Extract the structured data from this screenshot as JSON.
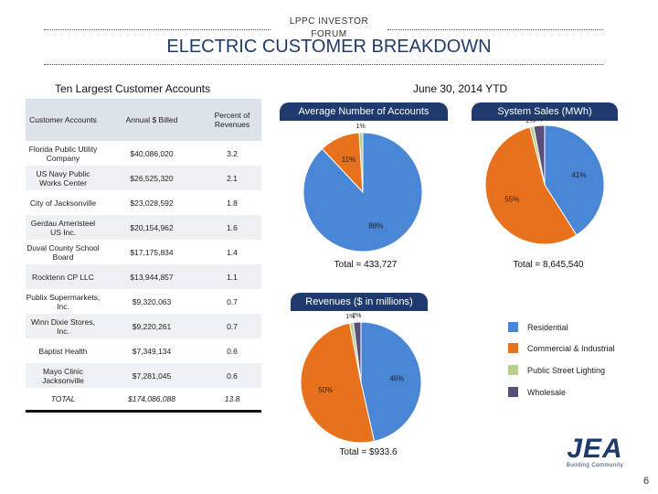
{
  "header": {
    "forum_label": "LPPC INVESTOR FORUM",
    "title": "ELECTRIC CUSTOMER BREAKDOWN"
  },
  "left_section_title": "Ten Largest Customer Accounts",
  "right_section_title": "June 30, 2014 YTD",
  "accounts_table": {
    "headers": [
      "Customer Accounts",
      "Annual $ Billed",
      "Percent of Revenues"
    ],
    "rows": [
      [
        "Florida Public Utility Company",
        "$40,086,020",
        "3.2"
      ],
      [
        "US Navy Public Works Center",
        "$26,525,320",
        "2.1"
      ],
      [
        "City of Jacksonville",
        "$23,028,592",
        "1.8"
      ],
      [
        "Gerdau Ameristeel US Inc.",
        "$20,154,962",
        "1.6"
      ],
      [
        "Duval County School Board",
        "$17,175,834",
        "1.4"
      ],
      [
        "Rocktenn CP LLC",
        "$13,944,857",
        "1.1"
      ],
      [
        "Publix Supermarkets, Inc.",
        "$9,320,063",
        "0.7"
      ],
      [
        "Winn Dixie Stores, Inc.",
        "$9,220,261",
        "0.7"
      ],
      [
        "Baptist Health",
        "$7,349,134",
        "0.6"
      ],
      [
        "Mayo Clinic Jacksonville",
        "$7,281,045",
        "0.6"
      ]
    ],
    "total": [
      "TOTAL",
      "$174,086,088",
      "13.8"
    ]
  },
  "colors": {
    "residential": "#4a86d6",
    "commercial": "#e8711c",
    "street": "#b8cf8c",
    "wholesale": "#5a4f7c",
    "navy": "#1f3b6e"
  },
  "chart_data": [
    {
      "type": "pie",
      "title": "Average Number of Accounts",
      "total_label": "Total = 433,727",
      "categories": [
        "Residential",
        "Commercial & Industrial",
        "Public Street Lighting",
        "Wholesale"
      ],
      "values": [
        88,
        11,
        1,
        0
      ],
      "data_labels": [
        "88%",
        "11%",
        "1%",
        ""
      ]
    },
    {
      "type": "pie",
      "title": "System Sales (MWh)",
      "total_label": "Total = 8,645,540",
      "categories": [
        "Residential",
        "Commercial & Industrial",
        "Public Street Lighting",
        "Wholesale"
      ],
      "values": [
        41,
        55,
        1,
        3
      ],
      "data_labels": [
        "41%",
        "55%",
        "1%",
        "3%"
      ]
    },
    {
      "type": "pie",
      "title": "Revenues ($ in millions)",
      "total_label": "Total = $933.6",
      "categories": [
        "Residential",
        "Commercial & Industrial",
        "Public Street Lighting",
        "Wholesale"
      ],
      "values": [
        46,
        50,
        1,
        2
      ],
      "data_labels": [
        "46%",
        "50%",
        "1%",
        "2%"
      ]
    }
  ],
  "legend": [
    "Residential",
    "Commercial & Industrial",
    "Public Street Lighting",
    "Wholesale"
  ],
  "logo": {
    "text": "JEA",
    "tagline": "Building Community"
  },
  "page_number": "6"
}
